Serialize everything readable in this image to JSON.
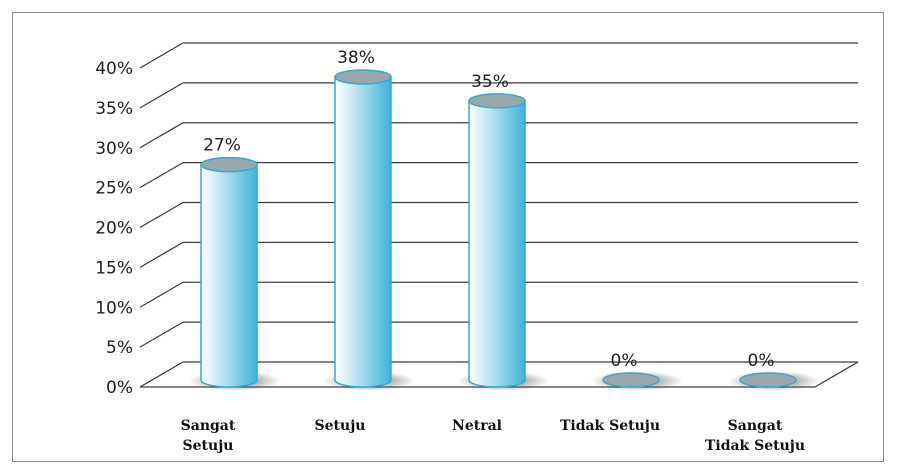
{
  "chart_data": {
    "type": "bar",
    "style": "3d-cylinder",
    "categories": [
      [
        "Sangat",
        "Setuju"
      ],
      [
        "Setuju"
      ],
      [
        "Netral"
      ],
      [
        "Tidak Setuju"
      ],
      [
        "Sangat",
        "Tidak Setuju"
      ]
    ],
    "values": [
      27,
      38,
      35,
      0,
      0
    ],
    "data_labels": [
      "27%",
      "38%",
      "35%",
      "0%",
      "0%"
    ],
    "y_ticks": [
      "0%",
      "5%",
      "10%",
      "15%",
      "20%",
      "25%",
      "30%",
      "35%",
      "40%"
    ],
    "ylim": [
      0,
      40
    ],
    "grid": true,
    "title": "",
    "xlabel": "",
    "ylabel": "",
    "colors": {
      "bar_light": "#ffffff",
      "bar_mid": "#bfe6f4",
      "bar_dark": "#3fb2d6",
      "bar_top": "#9aa7ad",
      "bar_outline": "#35a9cf",
      "gridline": "#3f3f3f",
      "shadow": "#6b6b6b"
    }
  }
}
